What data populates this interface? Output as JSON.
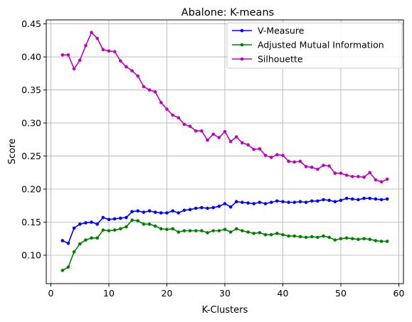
{
  "chart_data": {
    "type": "line",
    "title": "Abalone: K-means",
    "xlabel": "K-Clusters",
    "ylabel": "Score",
    "xlim": [
      -0.8,
      60.8
    ],
    "ylim": [
      0.057,
      0.456
    ],
    "xticks": [
      0,
      10,
      20,
      30,
      40,
      50,
      60
    ],
    "yticks": [
      0.1,
      0.15,
      0.2,
      0.25,
      0.3,
      0.35,
      0.4,
      0.45
    ],
    "grid": true,
    "legend_position": "top-right",
    "x": [
      2,
      3,
      4,
      5,
      6,
      7,
      8,
      9,
      10,
      11,
      12,
      13,
      14,
      15,
      16,
      17,
      18,
      19,
      20,
      21,
      22,
      23,
      24,
      25,
      26,
      27,
      28,
      29,
      30,
      31,
      32,
      33,
      34,
      35,
      36,
      37,
      38,
      39,
      40,
      41,
      42,
      43,
      44,
      45,
      46,
      47,
      48,
      49,
      50,
      51,
      52,
      53,
      54,
      55,
      56,
      57,
      58
    ],
    "series": [
      {
        "name": "V-Measure",
        "color": "#0000ff",
        "values": [
          0.122,
          0.118,
          0.141,
          0.147,
          0.149,
          0.15,
          0.147,
          0.157,
          0.154,
          0.155,
          0.156,
          0.157,
          0.166,
          0.167,
          0.165,
          0.167,
          0.165,
          0.164,
          0.164,
          0.167,
          0.164,
          0.168,
          0.169,
          0.171,
          0.172,
          0.171,
          0.172,
          0.174,
          0.178,
          0.173,
          0.181,
          0.18,
          0.179,
          0.178,
          0.18,
          0.178,
          0.18,
          0.182,
          0.181,
          0.18,
          0.18,
          0.181,
          0.18,
          0.182,
          0.182,
          0.184,
          0.183,
          0.181,
          0.183,
          0.186,
          0.185,
          0.184,
          0.186,
          0.186,
          0.185,
          0.184,
          0.185
        ]
      },
      {
        "name": "Adjusted Mutual Information",
        "color": "#008000",
        "values": [
          0.077,
          0.082,
          0.105,
          0.117,
          0.123,
          0.126,
          0.126,
          0.138,
          0.137,
          0.138,
          0.14,
          0.143,
          0.153,
          0.152,
          0.147,
          0.147,
          0.144,
          0.14,
          0.139,
          0.14,
          0.135,
          0.137,
          0.137,
          0.137,
          0.137,
          0.134,
          0.137,
          0.137,
          0.139,
          0.135,
          0.14,
          0.137,
          0.135,
          0.133,
          0.134,
          0.131,
          0.131,
          0.133,
          0.131,
          0.129,
          0.129,
          0.128,
          0.127,
          0.128,
          0.127,
          0.129,
          0.127,
          0.123,
          0.125,
          0.126,
          0.125,
          0.124,
          0.125,
          0.124,
          0.122,
          0.121,
          0.121
        ]
      },
      {
        "name": "Silhouette",
        "color": "#bf00bf",
        "values": [
          0.403,
          0.403,
          0.382,
          0.395,
          0.417,
          0.437,
          0.428,
          0.411,
          0.409,
          0.408,
          0.394,
          0.385,
          0.379,
          0.371,
          0.355,
          0.35,
          0.347,
          0.331,
          0.321,
          0.312,
          0.308,
          0.298,
          0.295,
          0.288,
          0.288,
          0.274,
          0.283,
          0.278,
          0.287,
          0.272,
          0.279,
          0.27,
          0.267,
          0.26,
          0.261,
          0.251,
          0.248,
          0.252,
          0.251,
          0.242,
          0.241,
          0.242,
          0.234,
          0.233,
          0.23,
          0.236,
          0.235,
          0.224,
          0.224,
          0.221,
          0.219,
          0.219,
          0.218,
          0.225,
          0.214,
          0.211,
          0.215
        ]
      }
    ]
  }
}
